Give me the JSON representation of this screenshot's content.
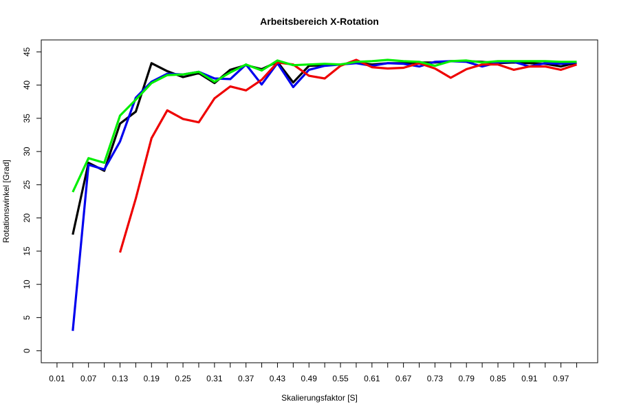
{
  "chart_data": {
    "type": "line",
    "title": "Arbeitsbereich X-Rotation",
    "xlabel": "Skalierungsfaktor [S]",
    "ylabel": "Rotationswinkel [Grad]",
    "xlim": [
      -0.02,
      1.04
    ],
    "ylim": [
      -1.8,
      46.8
    ],
    "x_tick_values": [
      0.01,
      0.07,
      0.13,
      0.19,
      0.25,
      0.31,
      0.37,
      0.43,
      0.49,
      0.55,
      0.61,
      0.67,
      0.73,
      0.79,
      0.85,
      0.91,
      0.97
    ],
    "x_tick_labels": [
      "0.01",
      "0.07",
      "0.13",
      "0.19",
      "0.25",
      "0.31",
      "0.37",
      "0.43",
      "0.49",
      "0.55",
      "0.61",
      "0.67",
      "0.73",
      "0.79",
      "0.85",
      "0.91",
      "0.97"
    ],
    "x_minor_ticks": [
      0.04,
      0.1,
      0.16,
      0.22,
      0.28,
      0.34,
      0.4,
      0.46,
      0.52,
      0.58,
      0.64,
      0.7,
      0.76,
      0.82,
      0.88,
      0.94,
      1.0
    ],
    "y_ticks": [
      0,
      5,
      10,
      15,
      20,
      25,
      30,
      35,
      40,
      45
    ],
    "y_tick_labels": [
      "0",
      "5",
      "10",
      "15",
      "20",
      "25",
      "30",
      "35",
      "40",
      "45"
    ],
    "grid": false,
    "legend": "none",
    "x": [
      0.04,
      0.07,
      0.1,
      0.13,
      0.16,
      0.19,
      0.22,
      0.25,
      0.28,
      0.31,
      0.34,
      0.37,
      0.4,
      0.43,
      0.46,
      0.49,
      0.52,
      0.55,
      0.58,
      0.61,
      0.64,
      0.67,
      0.7,
      0.73,
      0.76,
      0.79,
      0.82,
      0.85,
      0.88,
      0.91,
      0.94,
      0.97,
      1.0
    ],
    "series": [
      {
        "color": "#000000",
        "values": [
          17.5,
          28.3,
          27.1,
          34.2,
          36.0,
          43.3,
          42.1,
          41.2,
          41.8,
          40.3,
          42.3,
          43.0,
          42.4,
          43.5,
          40.4,
          42.9,
          43.0,
          43.1,
          43.4,
          43.1,
          43.3,
          43.3,
          43.4,
          43.4,
          43.6,
          43.6,
          43.5,
          43.3,
          43.4,
          43.3,
          43.2,
          42.8,
          43.4
        ]
      },
      {
        "color": "#0000ee",
        "values": [
          3.0,
          28.0,
          27.3,
          31.5,
          38.1,
          40.5,
          41.7,
          41.6,
          42.0,
          41.0,
          40.9,
          43.1,
          40.1,
          43.3,
          39.7,
          42.3,
          42.9,
          43.1,
          43.3,
          42.9,
          43.3,
          43.2,
          42.8,
          43.5,
          43.6,
          43.5,
          42.8,
          43.4,
          43.5,
          42.8,
          43.3,
          43.2,
          43.4
        ]
      },
      {
        "color": "#ee0000",
        "values": [
          null,
          null,
          null,
          14.8,
          22.9,
          32.0,
          36.2,
          34.9,
          34.4,
          38.0,
          39.8,
          39.2,
          40.8,
          43.4,
          43.1,
          41.4,
          41.0,
          42.9,
          43.8,
          42.7,
          42.5,
          42.6,
          43.3,
          42.5,
          41.1,
          42.4,
          43.1,
          43.1,
          42.3,
          42.8,
          42.8,
          42.3,
          43.1
        ]
      },
      {
        "color": "#00ee00",
        "values": [
          23.9,
          29.0,
          28.3,
          35.4,
          37.8,
          40.3,
          41.5,
          41.6,
          42.0,
          40.5,
          41.9,
          43.1,
          42.2,
          43.7,
          43.0,
          43.1,
          43.2,
          43.1,
          43.5,
          43.6,
          43.8,
          43.6,
          43.5,
          42.9,
          43.6,
          43.7,
          43.4,
          43.6,
          43.6,
          43.6,
          43.6,
          43.5,
          43.5
        ]
      }
    ]
  }
}
